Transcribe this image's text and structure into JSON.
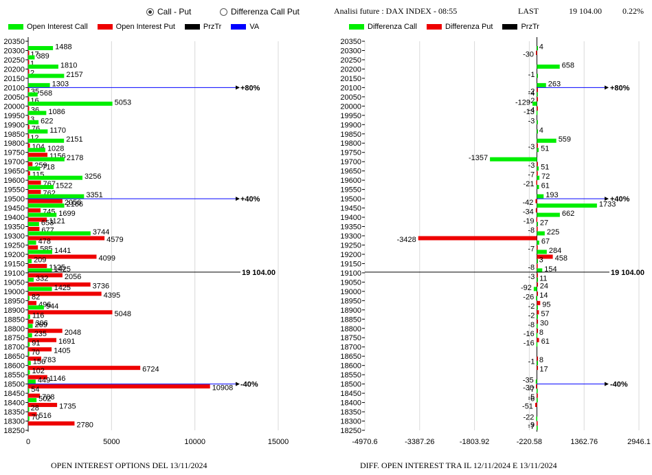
{
  "mode_selector": {
    "options": [
      {
        "label": "Call - Put",
        "selected": true
      },
      {
        "label": "Differenza Call Put",
        "selected": false
      }
    ]
  },
  "header": {
    "title": "Analisi future : DAX INDEX - 08:55",
    "last_label": "LAST",
    "last_value": "19 104.00",
    "change": "0.22%"
  },
  "colors": {
    "call": "#00ee00",
    "put": "#ee0000",
    "price": "#000000",
    "va": "#0000ff"
  },
  "left_legend": [
    {
      "label": "Open Interest Call",
      "color": "#00ee00"
    },
    {
      "label": "Open Interest Put",
      "color": "#ee0000"
    },
    {
      "label": "PrzTr",
      "color": "#000000"
    },
    {
      "label": "VA",
      "color": "#0000ff"
    }
  ],
  "right_legend": [
    {
      "label": "Differenza Call",
      "color": "#00ee00"
    },
    {
      "label": "Differenza Put",
      "color": "#ee0000"
    },
    {
      "label": "PrzTr",
      "color": "#000000"
    }
  ],
  "footer": {
    "left": "OPEN INTEREST OPTIONS DEL 13/11/2024",
    "right": "DIFF. OPEN INTEREST TRA IL 12/11/2024 E 13/11/2024"
  },
  "chart_data": [
    {
      "type": "bar",
      "orientation": "horizontal",
      "strikes": [
        20350,
        20300,
        20250,
        20200,
        20150,
        20100,
        20050,
        20000,
        19950,
        19900,
        19850,
        19800,
        19750,
        19700,
        19650,
        19600,
        19550,
        19500,
        19450,
        19400,
        19350,
        19300,
        19250,
        19200,
        19150,
        19100,
        19050,
        19000,
        18950,
        18900,
        18850,
        18800,
        18750,
        18700,
        18650,
        18600,
        18550,
        18500,
        18450,
        18400,
        18350,
        18300,
        18250
      ],
      "series": [
        {
          "name": "Open Interest Call",
          "values": [
            null,
            1488,
            389,
            1810,
            2157,
            1303,
            568,
            5053,
            1086,
            622,
            1170,
            2151,
            1028,
            2178,
            718,
            3256,
            1522,
            3351,
            2166,
            1699,
            653,
            3744,
            478,
            1441,
            209,
            1425,
            332,
            1425,
            82,
            944,
            116,
            269,
            235,
            91,
            70,
            156,
            102,
            449,
            54,
            502,
            28,
            70,
            null
          ]
        },
        {
          "name": "Open Interest Put",
          "values": [
            null,
            17,
            1,
            2,
            null,
            35,
            16,
            36,
            3,
            76,
            12,
            104,
            1156,
            259,
            115,
            767,
            762,
            2056,
            745,
            1121,
            677,
            4579,
            585,
            4099,
            1125,
            2056,
            3736,
            4395,
            496,
            5048,
            306,
            2048,
            1691,
            1405,
            783,
            6724,
            1146,
            10908,
            708,
            1735,
            516,
            2780,
            null
          ]
        }
      ],
      "price_line": {
        "value": 19104,
        "label": "19 104.00"
      },
      "va_lines": [
        {
          "strike": 20100,
          "label": "+80%"
        },
        {
          "strike": 19500,
          "label": "+40%"
        },
        {
          "strike": 18500,
          "label": "-40%"
        }
      ],
      "xlim": [
        0,
        15000
      ],
      "xticks": [
        0,
        5000,
        10000,
        15000
      ],
      "title": "OPEN INTEREST OPTIONS DEL 13/11/2024"
    },
    {
      "type": "bar",
      "orientation": "horizontal",
      "strikes": [
        20350,
        20300,
        20250,
        20200,
        20150,
        20100,
        20050,
        20000,
        19950,
        19900,
        19850,
        19800,
        19750,
        19700,
        19650,
        19600,
        19550,
        19500,
        19450,
        19400,
        19350,
        19300,
        19250,
        19200,
        19150,
        19100,
        19050,
        19000,
        18950,
        18900,
        18850,
        18800,
        18750,
        18700,
        18650,
        18600,
        18550,
        18500,
        18450,
        18400,
        18350,
        18300,
        18250
      ],
      "series": [
        {
          "name": "Differenza Call",
          "values": [
            null,
            4,
            null,
            658,
            -1,
            263,
            -4,
            -129,
            -13,
            -3,
            4,
            559,
            51,
            -1357,
            51,
            72,
            61,
            193,
            1733,
            662,
            27,
            225,
            67,
            284,
            3,
            154,
            11,
            -92,
            -26,
            -2,
            -2,
            -8,
            -16,
            -16,
            null,
            -1,
            null,
            -35,
            -7,
            -6,
            null,
            -22,
            -7
          ]
        },
        {
          "name": "Differenza Put",
          "values": [
            null,
            -30,
            null,
            null,
            null,
            -2,
            -2,
            -4,
            null,
            null,
            null,
            -3,
            null,
            -3,
            -7,
            -21,
            null,
            -42,
            -34,
            -19,
            -8,
            -3428,
            -7,
            458,
            -8,
            -3,
            24,
            14,
            95,
            57,
            30,
            8,
            61,
            null,
            8,
            17,
            null,
            -30,
            -5,
            -51,
            null,
            -9,
            null
          ]
        }
      ],
      "price_line": {
        "value": 19104,
        "label": "19 104.00"
      },
      "va_lines": [
        {
          "strike": 20100,
          "label": "+80%"
        },
        {
          "strike": 19500,
          "label": "+40%"
        },
        {
          "strike": 18500,
          "label": "-40%"
        }
      ],
      "xlim": [
        -4970.6,
        2946.1
      ],
      "xticks": [
        -4970.6,
        -3387.26,
        -1803.92,
        -220.58,
        1362.76,
        2946.1
      ],
      "title": "DIFF. OPEN INTEREST TRA IL 12/11/2024 E 13/11/2024"
    }
  ]
}
